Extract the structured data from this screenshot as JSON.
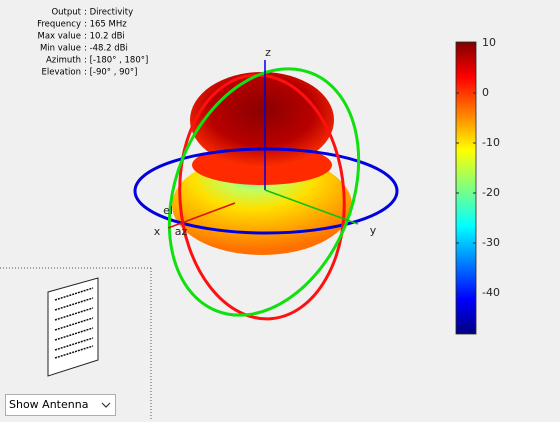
{
  "info": {
    "rows": [
      {
        "label": "Output",
        "value": ": Directivity"
      },
      {
        "label": "Frequency",
        "value": ": 165 MHz"
      },
      {
        "label": "Max value",
        "value": ": 10.2 dBi"
      },
      {
        "label": "Min value",
        "value": ": -48.2 dBi"
      },
      {
        "label": "Azimuth",
        "value": ": [-180° , 180°]"
      },
      {
        "label": "Elevation",
        "value": ": [-90° , 90°]"
      }
    ]
  },
  "axes_labels": {
    "x": "x",
    "y": "y",
    "z": "z",
    "az": "az",
    "el": "el"
  },
  "colorbar": {
    "lim": [
      -48.2,
      10.2
    ],
    "ticks": [
      10,
      0,
      -10,
      -20,
      -30,
      -40
    ]
  },
  "dropdown": {
    "selected": "Show Antenna"
  }
}
